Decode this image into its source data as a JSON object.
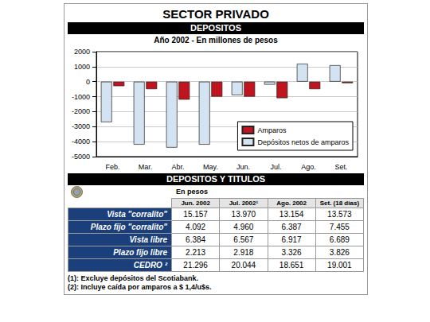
{
  "title": "SECTOR PRIVADO",
  "chart_data": {
    "type": "bar",
    "title": "DEPOSITOS",
    "subtitle": "Año 2002 - En millones de pesos",
    "categories": [
      "Feb.",
      "Mar.",
      "Abr.",
      "May.",
      "Jun.",
      "Jul.",
      "Ago.",
      "Set."
    ],
    "series": [
      {
        "name": "Depósitos netos de amparos",
        "color": "#d3e3f2",
        "values": [
          -2700,
          -4200,
          -4400,
          -4200,
          -900,
          -200,
          1200,
          1100
        ]
      },
      {
        "name": "Amparos",
        "color": "#c0151f",
        "values": [
          -300,
          -500,
          -1200,
          -1000,
          -1000,
          -1100,
          -500,
          -100
        ]
      }
    ],
    "ylim": [
      -5000,
      2000
    ],
    "yticks": [
      -5000,
      -4000,
      -3000,
      -2000,
      -1000,
      0,
      1000,
      2000
    ],
    "grid": true,
    "legend": "lower right"
  },
  "table": {
    "title": "DEPOSITOS Y TITULOS",
    "subtitle": "En pesos",
    "columns": [
      "Jun. 2002",
      "Jul. 2002¹",
      "Ago. 2002",
      "Set. (18 días)"
    ],
    "rows": [
      {
        "label": "Vista \"corralito\"",
        "values": [
          "15.157",
          "13.970",
          "13.154",
          "13.573"
        ]
      },
      {
        "label": "Plazo fijo \"corralito\"",
        "values": [
          "4.092",
          "4.960",
          "6.387",
          "7.455"
        ]
      },
      {
        "label": "Vista libre",
        "values": [
          "6.384",
          "6.567",
          "6.917",
          "6.689"
        ]
      },
      {
        "label": "Plazo fijo libre",
        "values": [
          "2.213",
          "2.918",
          "3.326",
          "3.826"
        ]
      },
      {
        "label": "CEDRO ²",
        "values": [
          "21.296",
          "20.044",
          "18.651",
          "19.001"
        ]
      }
    ]
  },
  "footnotes": [
    "(1): Excluye depósitos del Scotiabank.",
    "(2): Incluye caída por amparos a $ 1,4/u$s."
  ]
}
